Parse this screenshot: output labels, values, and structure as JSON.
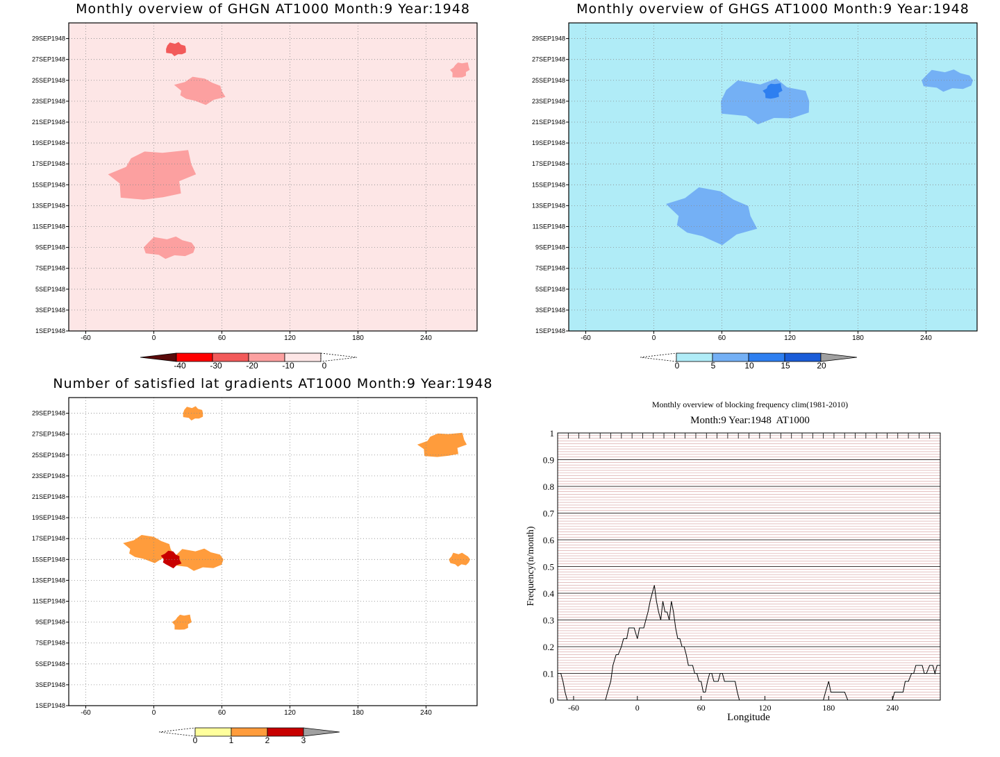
{
  "chart_data": [
    {
      "type": "heatmap",
      "title": "Monthly overview of GHGN AT1000 Month:9 Year:1948",
      "x_ticks": [
        -60,
        0,
        60,
        120,
        180,
        240
      ],
      "y_ticks": [
        "1SEP1948",
        "3SEP1948",
        "5SEP1948",
        "7SEP1948",
        "9SEP1948",
        "11SEP1948",
        "13SEP1948",
        "15SEP1948",
        "17SEP1948",
        "19SEP1948",
        "21SEP1948",
        "23SEP1948",
        "25SEP1948",
        "27SEP1948",
        "29SEP1948"
      ],
      "colorbar": {
        "levels": [
          "-40",
          "-30",
          "-20",
          "-10",
          "0"
        ],
        "colors": [
          "#5a0a0a",
          "#ff0000",
          "#f25a5a",
          "#fca0a0",
          "#fde6e6"
        ]
      },
      "regions": [
        {
          "level": "-20",
          "lon": 20,
          "date": 28,
          "extent": "small"
        },
        {
          "level": "-10",
          "lon": 0,
          "date": 16,
          "extent": "large"
        },
        {
          "level": "-10",
          "lon": 40,
          "date": 24,
          "extent": "medium"
        },
        {
          "level": "-10",
          "lon": 15,
          "date": 9,
          "extent": "medium"
        },
        {
          "level": "-10",
          "lon": 270,
          "date": 26,
          "extent": "small"
        }
      ]
    },
    {
      "type": "heatmap",
      "title": "Monthly overview of GHGS AT1000 Month:9 Year:1948",
      "x_ticks": [
        -60,
        0,
        60,
        120,
        180,
        240
      ],
      "y_ticks": [
        "1SEP1948",
        "3SEP1948",
        "5SEP1948",
        "7SEP1948",
        "9SEP1948",
        "11SEP1948",
        "13SEP1948",
        "15SEP1948",
        "17SEP1948",
        "19SEP1948",
        "21SEP1948",
        "23SEP1948",
        "25SEP1948",
        "27SEP1948",
        "29SEP1948"
      ],
      "colorbar": {
        "levels": [
          "0",
          "5",
          "10",
          "15",
          "20"
        ],
        "colors": [
          "#b0ecf7",
          "#74b0f5",
          "#2e7ff0",
          "#1a5cd8",
          "#a0a0a0"
        ]
      },
      "regions": [
        {
          "level": "5",
          "lon": 100,
          "date": 23,
          "extent": "large"
        },
        {
          "level": "10",
          "lon": 105,
          "date": 24,
          "extent": "small"
        },
        {
          "level": "5",
          "lon": 50,
          "date": 12,
          "extent": "large"
        },
        {
          "level": "5",
          "lon": 260,
          "date": 25,
          "extent": "medium"
        }
      ]
    },
    {
      "type": "heatmap",
      "title": "Number of satisfied lat gradients AT1000 Month:9 Year:1948",
      "x_ticks": [
        -60,
        0,
        60,
        120,
        180,
        240
      ],
      "y_ticks": [
        "1SEP1948",
        "3SEP1948",
        "5SEP1948",
        "7SEP1948",
        "9SEP1948",
        "11SEP1948",
        "13SEP1948",
        "15SEP1948",
        "17SEP1948",
        "19SEP1948",
        "21SEP1948",
        "23SEP1948",
        "25SEP1948",
        "27SEP1948",
        "29SEP1948"
      ],
      "colorbar": {
        "levels": [
          "0",
          "1",
          "2",
          "3"
        ],
        "colors": [
          "#ffff9c",
          "#ff9c3c",
          "#c80000",
          "#a0a0a0"
        ]
      },
      "regions": [
        {
          "level": "1",
          "lon": 35,
          "date": 29,
          "extent": "small"
        },
        {
          "level": "1",
          "lon": 255,
          "date": 26,
          "extent": "medium"
        },
        {
          "level": "1",
          "lon": -5,
          "date": 16,
          "extent": "medium"
        },
        {
          "level": "1",
          "lon": 40,
          "date": 15,
          "extent": "medium"
        },
        {
          "level": "1",
          "lon": 25,
          "date": 9,
          "extent": "small"
        },
        {
          "level": "2",
          "lon": 15,
          "date": 15,
          "extent": "small"
        },
        {
          "level": "1",
          "lon": 270,
          "date": 15,
          "extent": "small"
        }
      ]
    },
    {
      "type": "line",
      "title": "Monthly overview of blocking frequency clim(1981-2010)",
      "subtitle": "Month:9 Year:1948  AT1000",
      "xlabel": "Longitude",
      "ylabel": "Frequency(n/month)",
      "xlim": [
        -75,
        285
      ],
      "ylim": [
        0,
        1
      ],
      "x_ticks": [
        -60,
        0,
        60,
        120,
        180,
        240
      ],
      "y_ticks": [
        "0",
        "0.1",
        "0.2",
        "0.3",
        "0.4",
        "0.5",
        "0.6",
        "0.7",
        "0.8",
        "0.9",
        "1"
      ],
      "x": [
        -75,
        -72,
        -70,
        -68,
        -66,
        -64,
        -62,
        -60,
        -50,
        -40,
        -30,
        -28,
        -25,
        -23,
        -20,
        -18,
        -15,
        -13,
        -10,
        -8,
        -5,
        -3,
        0,
        2,
        4,
        6,
        8,
        10,
        12,
        14,
        16,
        18,
        20,
        22,
        24,
        26,
        28,
        30,
        32,
        34,
        36,
        38,
        40,
        42,
        44,
        46,
        48,
        50,
        52,
        54,
        56,
        58,
        60,
        62,
        64,
        66,
        68,
        70,
        72,
        74,
        76,
        78,
        80,
        82,
        84,
        86,
        88,
        90,
        92,
        94,
        96,
        98,
        100,
        102,
        104,
        106,
        108,
        110,
        112,
        114,
        116,
        118,
        120,
        130,
        140,
        150,
        160,
        170,
        175,
        177,
        180,
        182,
        185,
        188,
        190,
        193,
        195,
        198,
        200,
        210,
        220,
        230,
        235,
        237,
        240,
        242,
        245,
        248,
        250,
        252,
        255,
        258,
        260,
        262,
        265,
        268,
        270,
        272,
        275,
        278,
        280,
        282,
        285
      ],
      "y": [
        0.1,
        0.1,
        0.07,
        0.03,
        0,
        0,
        0,
        0,
        0,
        0,
        0,
        0.03,
        0.07,
        0.13,
        0.17,
        0.17,
        0.2,
        0.23,
        0.23,
        0.27,
        0.27,
        0.27,
        0.23,
        0.27,
        0.27,
        0.27,
        0.3,
        0.33,
        0.37,
        0.4,
        0.43,
        0.37,
        0.33,
        0.3,
        0.37,
        0.33,
        0.33,
        0.3,
        0.37,
        0.33,
        0.27,
        0.23,
        0.23,
        0.2,
        0.2,
        0.17,
        0.13,
        0.13,
        0.13,
        0.1,
        0.1,
        0.07,
        0.07,
        0.03,
        0.03,
        0.07,
        0.1,
        0.1,
        0.07,
        0.07,
        0.07,
        0.1,
        0.1,
        0.07,
        0.07,
        0.07,
        0.07,
        0.07,
        0.07,
        0.03,
        0,
        0,
        0,
        0,
        0,
        0,
        0,
        0,
        0,
        0,
        0,
        0,
        0,
        0,
        0,
        0,
        0,
        0,
        0,
        0.03,
        0.07,
        0.03,
        0.03,
        0.03,
        0.03,
        0.03,
        0.03,
        0,
        0,
        0,
        0,
        0,
        0,
        0,
        0,
        0.03,
        0.03,
        0.03,
        0.03,
        0.07,
        0.07,
        0.1,
        0.1,
        0.13,
        0.13,
        0.13,
        0.1,
        0.1,
        0.13,
        0.13,
        0.1,
        0.13,
        0.13
      ],
      "grid": true
    }
  ]
}
